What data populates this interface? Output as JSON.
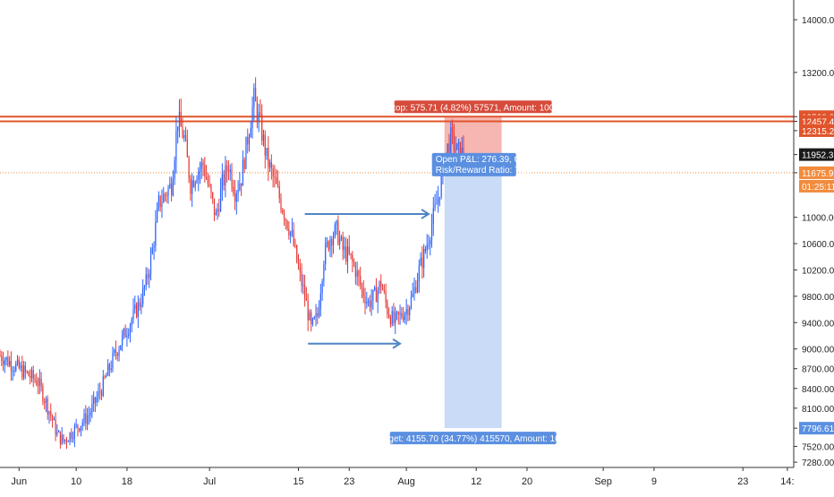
{
  "chart_data": {
    "type": "candlestick",
    "symbol_hint": "",
    "x_ticks": [
      {
        "label": "Jun",
        "day": 0
      },
      {
        "label": "10",
        "day": 9
      },
      {
        "label": "18",
        "day": 17
      },
      {
        "label": "Jul",
        "day": 30
      },
      {
        "label": "15",
        "day": 44
      },
      {
        "label": "23",
        "day": 52
      },
      {
        "label": "Aug",
        "day": 61
      },
      {
        "label": "12",
        "day": 72
      },
      {
        "label": "20",
        "day": 80
      },
      {
        "label": "Sep",
        "day": 92
      },
      {
        "label": "9",
        "day": 100
      },
      {
        "label": "23",
        "day": 114
      },
      {
        "label": "14:",
        "day": 121
      }
    ],
    "y_ticks": [
      14000,
      13200,
      12528.02,
      12457.45,
      12315.22,
      11952.31,
      11675.92,
      11000,
      10600,
      10200,
      9800,
      9400,
      9000,
      8700,
      8400,
      8100,
      7796.61,
      7520,
      7280
    ],
    "y_tick_labels": [
      "14000.00",
      "13200.00",
      "12528.02",
      "12457.45",
      "12315.22",
      "11952.31",
      "11675.92",
      "11000.00",
      "10600.00",
      "10200.00",
      "9800.00",
      "9400.00",
      "9000.00",
      "8700.00",
      "8400.00",
      "8100.00",
      "7796.61",
      "7520.00",
      "7280.00"
    ],
    "countdown_label": "01:25:11",
    "ylim": [
      7200,
      14300
    ],
    "xlim_days": [
      -3,
      122
    ],
    "colors": {
      "up": "#2962ff",
      "down": "#e53935",
      "stop_zone": "#f4a9a3",
      "target_zone": "#c9dbf6",
      "hline": "#e0542b",
      "last_price_bg": "#1a1a1a",
      "entry_price_bg": "#f28b3c",
      "pattern_arrows": "#4f86c6"
    },
    "horizontal_lines": [
      12528.02,
      12457.45
    ],
    "entry_price": 11675.92,
    "last_price": 11952.31,
    "position": {
      "start_day": 67,
      "end_day": 76,
      "entry": 11675.92,
      "stop": 12528.02,
      "target": 7796.61,
      "stop_label": "Stop: 575.71 (4.82%) 57571, Amount: 1000",
      "target_label": "Target: 4155.70 (34.77%) 415570, Amount: 1000",
      "pnl_label": "Open P&L: 276.39, Qty: 0",
      "rr_label": "Risk/Reward Ratio: 7.22"
    },
    "pattern_lines": [
      {
        "from": {
          "day": 45,
          "price": 11050
        },
        "to": {
          "day": 64.5,
          "price": 11050
        }
      },
      {
        "from": {
          "day": 45.5,
          "price": 9080
        },
        "to": {
          "day": 60,
          "price": 9080
        }
      }
    ],
    "anchors": [
      [
        -3,
        8900
      ],
      [
        0,
        8700
      ],
      [
        3,
        8500
      ],
      [
        5,
        8000
      ],
      [
        6,
        7700
      ],
      [
        7,
        7600
      ],
      [
        9,
        7800
      ],
      [
        11,
        8000
      ],
      [
        13,
        8400
      ],
      [
        15,
        8900
      ],
      [
        17,
        9300
      ],
      [
        19,
        9700
      ],
      [
        20,
        10000
      ],
      [
        21,
        10500
      ],
      [
        22,
        11200
      ],
      [
        24,
        11500
      ],
      [
        25,
        12500
      ],
      [
        26,
        12200
      ],
      [
        27,
        11500
      ],
      [
        28,
        11700
      ],
      [
        29,
        11800
      ],
      [
        30,
        11400
      ],
      [
        31,
        11000
      ],
      [
        32,
        11500
      ],
      [
        33,
        11800
      ],
      [
        34,
        11400
      ],
      [
        35,
        11600
      ],
      [
        36,
        12200
      ],
      [
        37,
        12800
      ],
      [
        38,
        12400
      ],
      [
        39,
        11900
      ],
      [
        40,
        11600
      ],
      [
        41,
        11300
      ],
      [
        42,
        11000
      ],
      [
        43,
        10700
      ],
      [
        44,
        10200
      ],
      [
        45,
        9800
      ],
      [
        46,
        9300
      ],
      [
        47,
        9500
      ],
      [
        48,
        10400
      ],
      [
        49,
        10700
      ],
      [
        50,
        10800
      ],
      [
        51,
        10500
      ],
      [
        52,
        10400
      ],
      [
        53,
        10200
      ],
      [
        54,
        9900
      ],
      [
        55,
        9700
      ],
      [
        56,
        9800
      ],
      [
        57,
        10000
      ],
      [
        58,
        9600
      ],
      [
        59,
        9400
      ],
      [
        60,
        9500
      ],
      [
        61,
        9600
      ],
      [
        62,
        9800
      ],
      [
        63,
        10200
      ],
      [
        64,
        10500
      ],
      [
        65,
        10900
      ],
      [
        66,
        11300
      ],
      [
        67,
        11900
      ],
      [
        68,
        12200
      ],
      [
        69,
        12000
      ],
      [
        70,
        11950
      ]
    ]
  }
}
